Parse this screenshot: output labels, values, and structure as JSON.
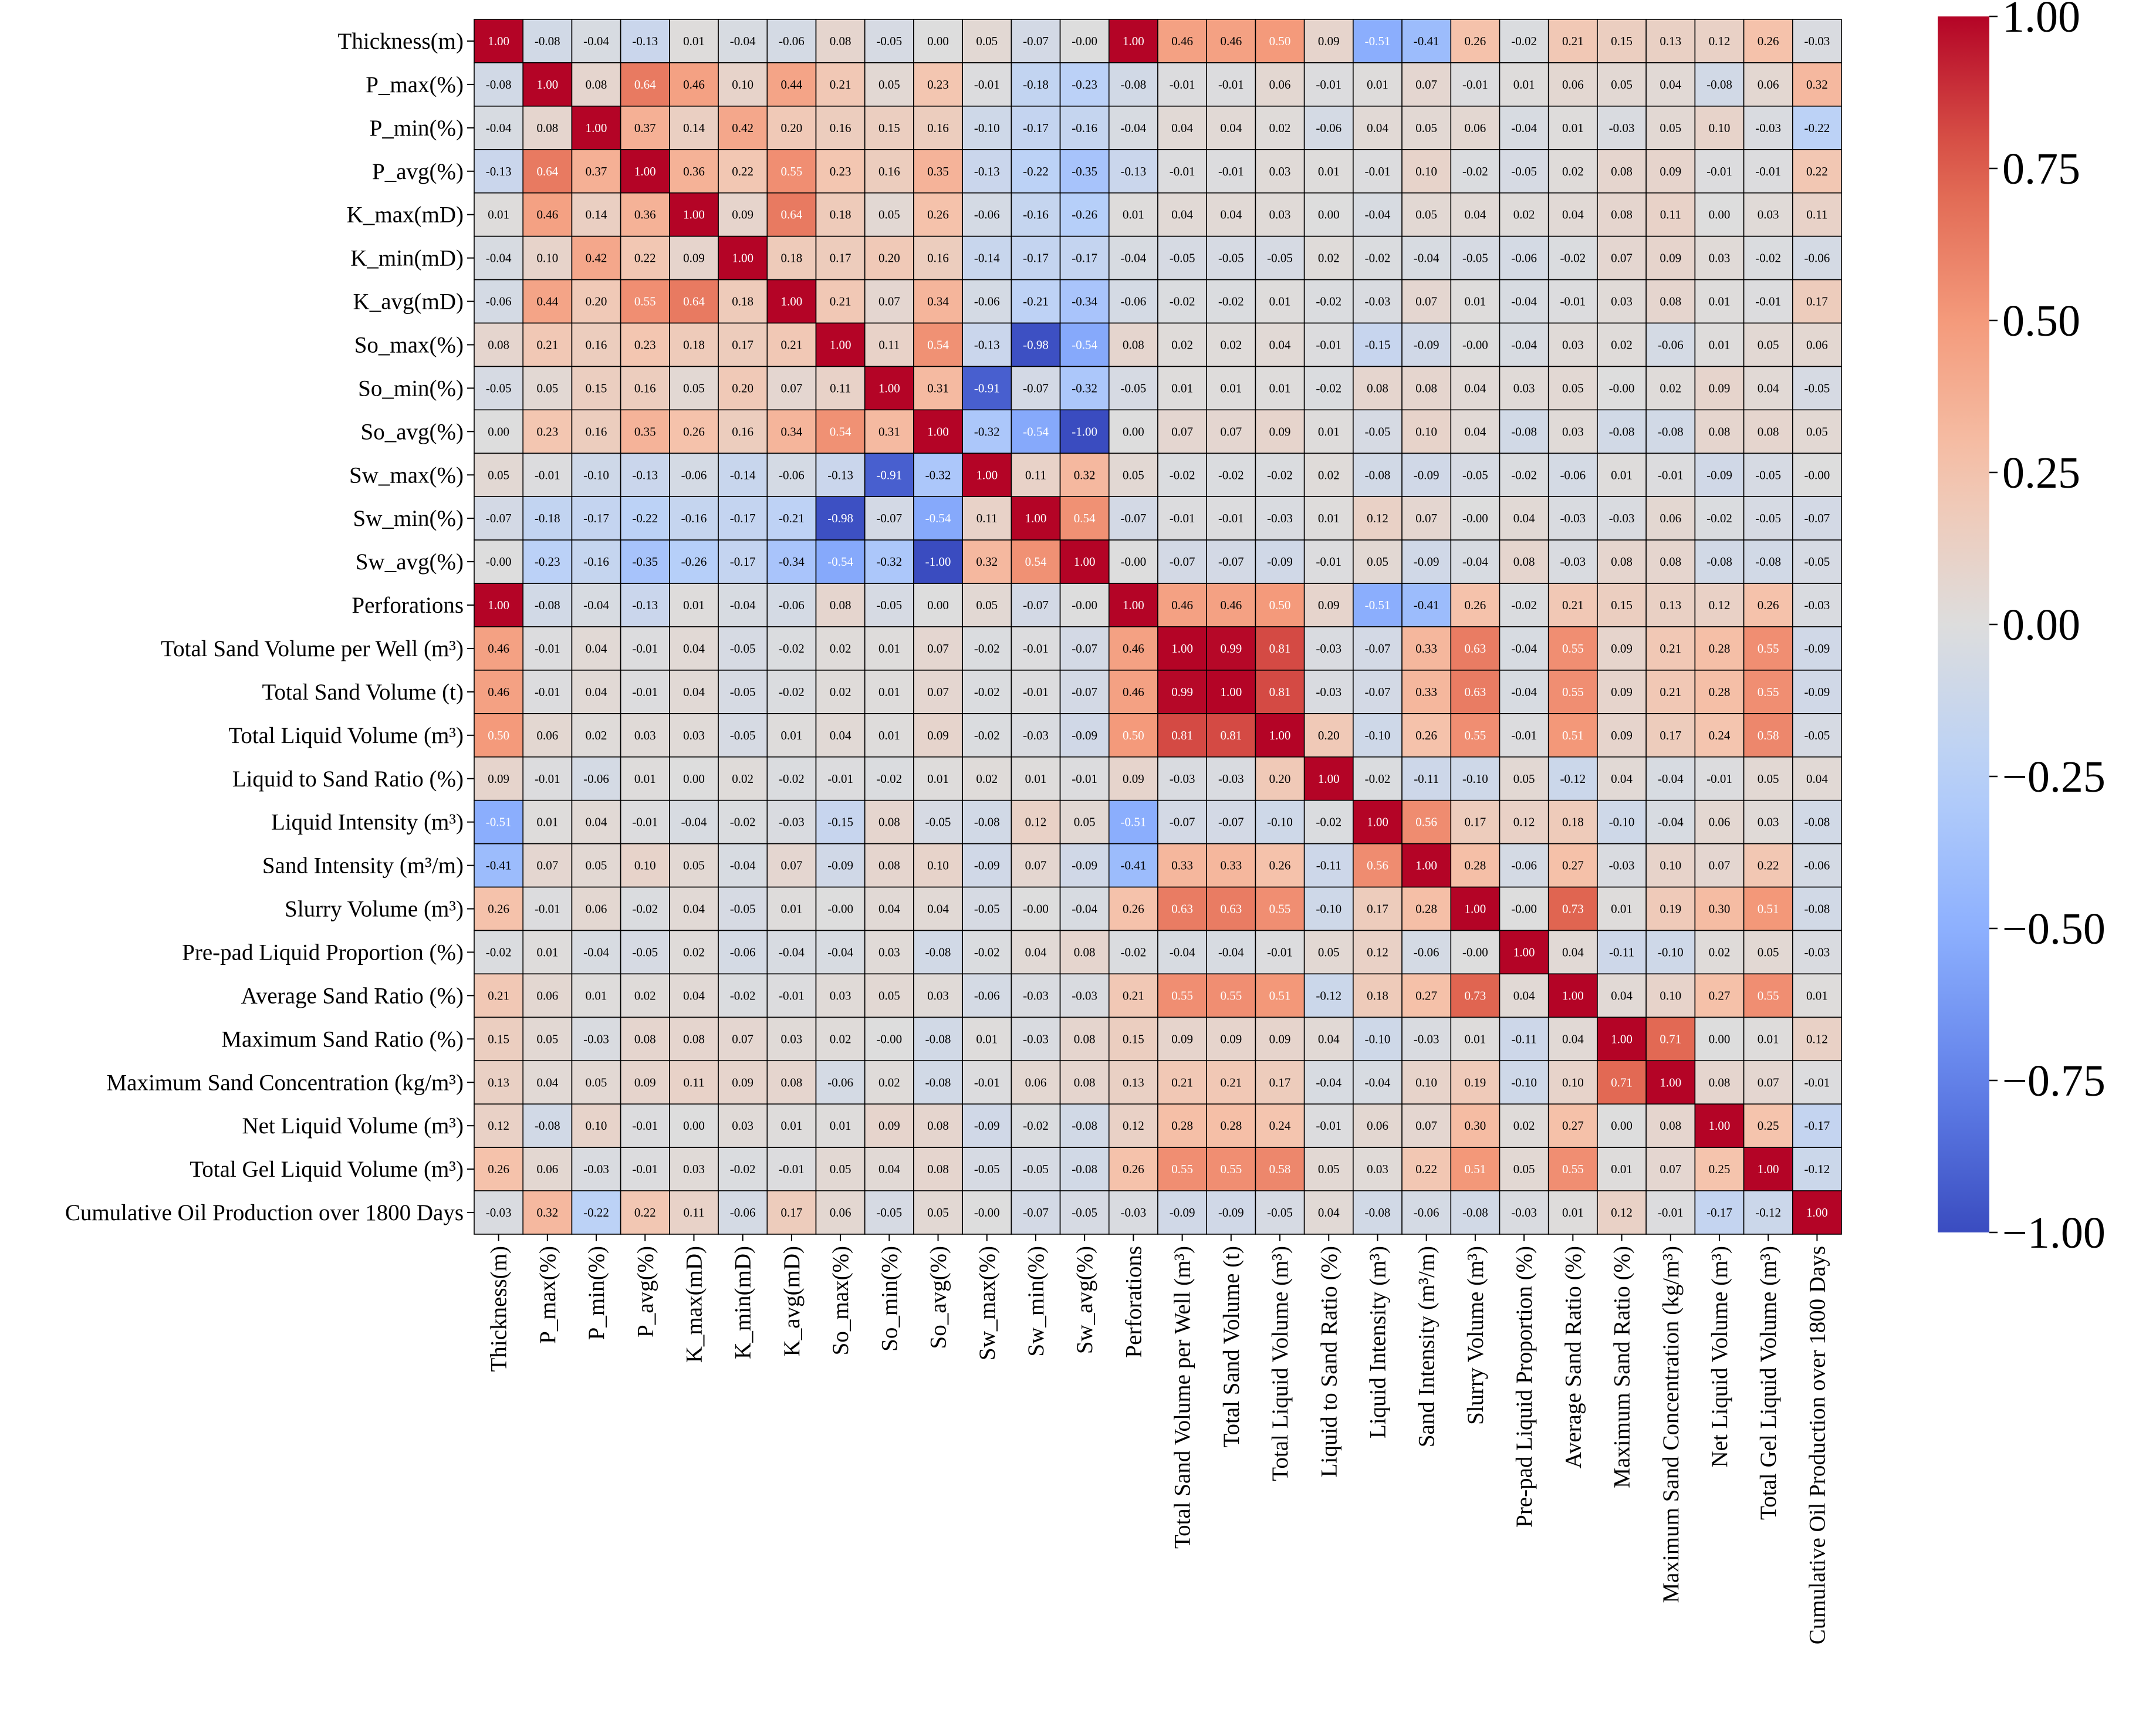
{
  "chart_data": {
    "type": "heatmap",
    "title": "",
    "colorbar": {
      "min": -1.0,
      "max": 1.0,
      "ticks": [
        "1.00",
        "0.75",
        "0.50",
        "0.25",
        "0.00",
        "−0.25",
        "−0.50",
        "−0.75",
        "−1.00"
      ],
      "tick_values": [
        1.0,
        0.75,
        0.5,
        0.25,
        0.0,
        -0.25,
        -0.5,
        -0.75,
        -1.0
      ],
      "colormap": "coolwarm"
    },
    "labels": [
      "Thickness(m)",
      "P_max(%)",
      "P_min(%)",
      "P_avg(%)",
      "K_max(mD)",
      "K_min(mD)",
      "K_avg(mD)",
      "So_max(%)",
      "So_min(%)",
      "So_avg(%)",
      "Sw_max(%)",
      "Sw_min(%)",
      "Sw_avg(%)",
      "Perforations",
      "Total Sand Volume per Well (m³)",
      "Total Sand Volume (t)",
      "Total Liquid Volume (m³)",
      "Liquid to Sand Ratio (%)",
      "Liquid Intensity (m³)",
      "Sand Intensity (m³/m)",
      "Slurry Volume (m³)",
      "Pre-pad Liquid Proportion (%)",
      "Average Sand Ratio (%)",
      "Maximum Sand Ratio (%)",
      "Maximum Sand Concentration (kg/m³)",
      "Net Liquid Volume (m³)",
      "Total Gel Liquid Volume (m³)",
      "Cumulative Oil Production over 1800 Days"
    ],
    "values": [
      [
        1.0,
        -0.08,
        -0.04,
        -0.13,
        0.01,
        -0.04,
        -0.06,
        0.08,
        -0.05,
        0.0,
        0.05,
        -0.07,
        -0.0,
        1.0,
        0.46,
        0.46,
        0.5,
        0.09,
        -0.51,
        -0.41,
        0.26,
        -0.02,
        0.21,
        0.15,
        0.13,
        0.12,
        0.26,
        -0.03
      ],
      [
        -0.08,
        1.0,
        0.08,
        0.64,
        0.46,
        0.1,
        0.44,
        0.21,
        0.05,
        0.23,
        -0.01,
        -0.18,
        -0.23,
        -0.08,
        -0.01,
        -0.01,
        0.06,
        -0.01,
        0.01,
        0.07,
        -0.01,
        0.01,
        0.06,
        0.05,
        0.04,
        -0.08,
        0.06,
        0.32
      ],
      [
        -0.04,
        0.08,
        1.0,
        0.37,
        0.14,
        0.42,
        0.2,
        0.16,
        0.15,
        0.16,
        -0.1,
        -0.17,
        -0.16,
        -0.04,
        0.04,
        0.04,
        0.02,
        -0.06,
        0.04,
        0.05,
        0.06,
        -0.04,
        0.01,
        -0.03,
        0.05,
        0.1,
        -0.03,
        -0.22
      ],
      [
        -0.13,
        0.64,
        0.37,
        1.0,
        0.36,
        0.22,
        0.55,
        0.23,
        0.16,
        0.35,
        -0.13,
        -0.22,
        -0.35,
        -0.13,
        -0.01,
        -0.01,
        0.03,
        0.01,
        -0.01,
        0.1,
        -0.02,
        -0.05,
        0.02,
        0.08,
        0.09,
        -0.01,
        -0.01,
        0.22
      ],
      [
        0.01,
        0.46,
        0.14,
        0.36,
        1.0,
        0.09,
        0.64,
        0.18,
        0.05,
        0.26,
        -0.06,
        -0.16,
        -0.26,
        0.01,
        0.04,
        0.04,
        0.03,
        0.0,
        -0.04,
        0.05,
        0.04,
        0.02,
        0.04,
        0.08,
        0.11,
        0.0,
        0.03,
        0.11
      ],
      [
        -0.04,
        0.1,
        0.42,
        0.22,
        0.09,
        1.0,
        0.18,
        0.17,
        0.2,
        0.16,
        -0.14,
        -0.17,
        -0.17,
        -0.04,
        -0.05,
        -0.05,
        -0.05,
        0.02,
        -0.02,
        -0.04,
        -0.05,
        -0.06,
        -0.02,
        0.07,
        0.09,
        0.03,
        -0.02,
        -0.06
      ],
      [
        -0.06,
        0.44,
        0.2,
        0.55,
        0.64,
        0.18,
        1.0,
        0.21,
        0.07,
        0.34,
        -0.06,
        -0.21,
        -0.34,
        -0.06,
        -0.02,
        -0.02,
        0.01,
        -0.02,
        -0.03,
        0.07,
        0.01,
        -0.04,
        -0.01,
        0.03,
        0.08,
        0.01,
        -0.01,
        0.17
      ],
      [
        0.08,
        0.21,
        0.16,
        0.23,
        0.18,
        0.17,
        0.21,
        1.0,
        0.11,
        0.54,
        -0.13,
        -0.98,
        -0.54,
        0.08,
        0.02,
        0.02,
        0.04,
        -0.01,
        -0.15,
        -0.09,
        -0.0,
        -0.04,
        0.03,
        0.02,
        -0.06,
        0.01,
        0.05,
        0.06
      ],
      [
        -0.05,
        0.05,
        0.15,
        0.16,
        0.05,
        0.2,
        0.07,
        0.11,
        1.0,
        0.31,
        -0.91,
        -0.07,
        -0.32,
        -0.05,
        0.01,
        0.01,
        0.01,
        -0.02,
        0.08,
        0.08,
        0.04,
        0.03,
        0.05,
        -0.0,
        0.02,
        0.09,
        0.04,
        -0.05
      ],
      [
        0.0,
        0.23,
        0.16,
        0.35,
        0.26,
        0.16,
        0.34,
        0.54,
        0.31,
        1.0,
        -0.32,
        -0.54,
        -1.0,
        0.0,
        0.07,
        0.07,
        0.09,
        0.01,
        -0.05,
        0.1,
        0.04,
        -0.08,
        0.03,
        -0.08,
        -0.08,
        0.08,
        0.08,
        0.05
      ],
      [
        0.05,
        -0.01,
        -0.1,
        -0.13,
        -0.06,
        -0.14,
        -0.06,
        -0.13,
        -0.91,
        -0.32,
        1.0,
        0.11,
        0.32,
        0.05,
        -0.02,
        -0.02,
        -0.02,
        0.02,
        -0.08,
        -0.09,
        -0.05,
        -0.02,
        -0.06,
        0.01,
        -0.01,
        -0.09,
        -0.05,
        -0.0
      ],
      [
        -0.07,
        -0.18,
        -0.17,
        -0.22,
        -0.16,
        -0.17,
        -0.21,
        -0.98,
        -0.07,
        -0.54,
        0.11,
        1.0,
        0.54,
        -0.07,
        -0.01,
        -0.01,
        -0.03,
        0.01,
        0.12,
        0.07,
        -0.0,
        0.04,
        -0.03,
        -0.03,
        0.06,
        -0.02,
        -0.05,
        -0.07
      ],
      [
        -0.0,
        -0.23,
        -0.16,
        -0.35,
        -0.26,
        -0.17,
        -0.34,
        -0.54,
        -0.32,
        -1.0,
        0.32,
        0.54,
        1.0,
        -0.0,
        -0.07,
        -0.07,
        -0.09,
        -0.01,
        0.05,
        -0.09,
        -0.04,
        0.08,
        -0.03,
        0.08,
        0.08,
        -0.08,
        -0.08,
        -0.05
      ],
      [
        1.0,
        -0.08,
        -0.04,
        -0.13,
        0.01,
        -0.04,
        -0.06,
        0.08,
        -0.05,
        0.0,
        0.05,
        -0.07,
        -0.0,
        1.0,
        0.46,
        0.46,
        0.5,
        0.09,
        -0.51,
        -0.41,
        0.26,
        -0.02,
        0.21,
        0.15,
        0.13,
        0.12,
        0.26,
        -0.03
      ],
      [
        0.46,
        -0.01,
        0.04,
        -0.01,
        0.04,
        -0.05,
        -0.02,
        0.02,
        0.01,
        0.07,
        -0.02,
        -0.01,
        -0.07,
        0.46,
        1.0,
        0.99,
        0.81,
        -0.03,
        -0.07,
        0.33,
        0.63,
        -0.04,
        0.55,
        0.09,
        0.21,
        0.28,
        0.55,
        -0.09
      ],
      [
        0.46,
        -0.01,
        0.04,
        -0.01,
        0.04,
        -0.05,
        -0.02,
        0.02,
        0.01,
        0.07,
        -0.02,
        -0.01,
        -0.07,
        0.46,
        0.99,
        1.0,
        0.81,
        -0.03,
        -0.07,
        0.33,
        0.63,
        -0.04,
        0.55,
        0.09,
        0.21,
        0.28,
        0.55,
        -0.09
      ],
      [
        0.5,
        0.06,
        0.02,
        0.03,
        0.03,
        -0.05,
        0.01,
        0.04,
        0.01,
        0.09,
        -0.02,
        -0.03,
        -0.09,
        0.5,
        0.81,
        0.81,
        1.0,
        0.2,
        -0.1,
        0.26,
        0.55,
        -0.01,
        0.51,
        0.09,
        0.17,
        0.24,
        0.58,
        -0.05
      ],
      [
        0.09,
        -0.01,
        -0.06,
        0.01,
        0.0,
        0.02,
        -0.02,
        -0.01,
        -0.02,
        0.01,
        0.02,
        0.01,
        -0.01,
        0.09,
        -0.03,
        -0.03,
        0.2,
        1.0,
        -0.02,
        -0.11,
        -0.1,
        0.05,
        -0.12,
        0.04,
        -0.04,
        -0.01,
        0.05,
        0.04
      ],
      [
        -0.51,
        0.01,
        0.04,
        -0.01,
        -0.04,
        -0.02,
        -0.03,
        -0.15,
        0.08,
        -0.05,
        -0.08,
        0.12,
        0.05,
        -0.51,
        -0.07,
        -0.07,
        -0.1,
        -0.02,
        1.0,
        0.56,
        0.17,
        0.12,
        0.18,
        -0.1,
        -0.04,
        0.06,
        0.03,
        -0.08
      ],
      [
        -0.41,
        0.07,
        0.05,
        0.1,
        0.05,
        -0.04,
        0.07,
        -0.09,
        0.08,
        0.1,
        -0.09,
        0.07,
        -0.09,
        -0.41,
        0.33,
        0.33,
        0.26,
        -0.11,
        0.56,
        1.0,
        0.28,
        -0.06,
        0.27,
        -0.03,
        0.1,
        0.07,
        0.22,
        -0.06
      ],
      [
        0.26,
        -0.01,
        0.06,
        -0.02,
        0.04,
        -0.05,
        0.01,
        -0.0,
        0.04,
        0.04,
        -0.05,
        -0.0,
        -0.04,
        0.26,
        0.63,
        0.63,
        0.55,
        -0.1,
        0.17,
        0.28,
        1.0,
        -0.0,
        0.73,
        0.01,
        0.19,
        0.3,
        0.51,
        -0.08
      ],
      [
        -0.02,
        0.01,
        -0.04,
        -0.05,
        0.02,
        -0.06,
        -0.04,
        -0.04,
        0.03,
        -0.08,
        -0.02,
        0.04,
        0.08,
        -0.02,
        -0.04,
        -0.04,
        -0.01,
        0.05,
        0.12,
        -0.06,
        -0.0,
        1.0,
        0.04,
        -0.11,
        -0.1,
        0.02,
        0.05,
        -0.03
      ],
      [
        0.21,
        0.06,
        0.01,
        0.02,
        0.04,
        -0.02,
        -0.01,
        0.03,
        0.05,
        0.03,
        -0.06,
        -0.03,
        -0.03,
        0.21,
        0.55,
        0.55,
        0.51,
        -0.12,
        0.18,
        0.27,
        0.73,
        0.04,
        1.0,
        0.04,
        0.1,
        0.27,
        0.55,
        0.01
      ],
      [
        0.15,
        0.05,
        -0.03,
        0.08,
        0.08,
        0.07,
        0.03,
        0.02,
        -0.0,
        -0.08,
        0.01,
        -0.03,
        0.08,
        0.15,
        0.09,
        0.09,
        0.09,
        0.04,
        -0.1,
        -0.03,
        0.01,
        -0.11,
        0.04,
        1.0,
        0.71,
        0.0,
        0.01,
        0.12
      ],
      [
        0.13,
        0.04,
        0.05,
        0.09,
        0.11,
        0.09,
        0.08,
        -0.06,
        0.02,
        -0.08,
        -0.01,
        0.06,
        0.08,
        0.13,
        0.21,
        0.21,
        0.17,
        -0.04,
        -0.04,
        0.1,
        0.19,
        -0.1,
        0.1,
        0.71,
        1.0,
        0.08,
        0.07,
        -0.01
      ],
      [
        0.12,
        -0.08,
        0.1,
        -0.01,
        0.0,
        0.03,
        0.01,
        0.01,
        0.09,
        0.08,
        -0.09,
        -0.02,
        -0.08,
        0.12,
        0.28,
        0.28,
        0.24,
        -0.01,
        0.06,
        0.07,
        0.3,
        0.02,
        0.27,
        0.0,
        0.08,
        1.0,
        0.25,
        -0.17
      ],
      [
        0.26,
        0.06,
        -0.03,
        -0.01,
        0.03,
        -0.02,
        -0.01,
        0.05,
        0.04,
        0.08,
        -0.05,
        -0.05,
        -0.08,
        0.26,
        0.55,
        0.55,
        0.58,
        0.05,
        0.03,
        0.22,
        0.51,
        0.05,
        0.55,
        0.01,
        0.07,
        0.25,
        1.0,
        -0.12
      ],
      [
        -0.03,
        0.32,
        -0.22,
        0.22,
        0.11,
        -0.06,
        0.17,
        0.06,
        -0.05,
        0.05,
        -0.0,
        -0.07,
        -0.05,
        -0.03,
        -0.09,
        -0.09,
        -0.05,
        0.04,
        -0.08,
        -0.06,
        -0.08,
        -0.03,
        0.01,
        0.12,
        -0.01,
        -0.17,
        -0.12,
        1.0
      ]
    ]
  }
}
